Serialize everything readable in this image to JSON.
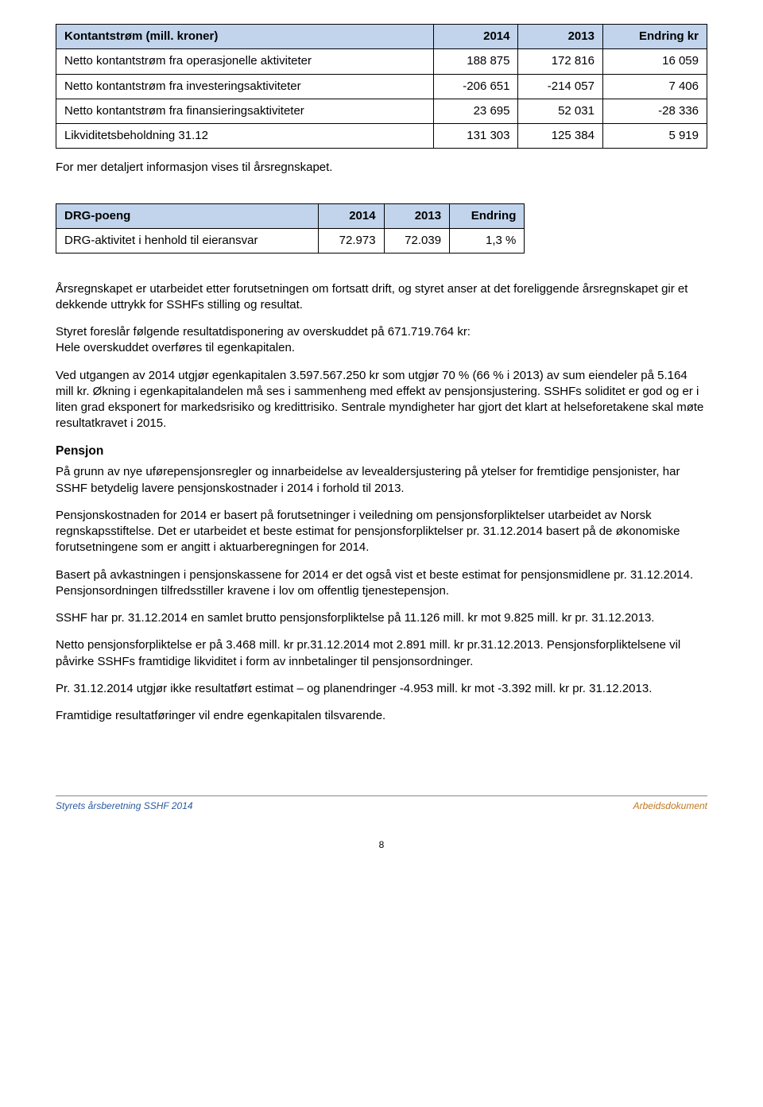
{
  "table1": {
    "header_bg": "#c1d4ec",
    "border_color": "#000000",
    "columns": [
      "Kontantstrøm (mill. kroner)",
      "2014",
      "2013",
      "Endring kr"
    ],
    "rows": [
      [
        "Netto kontantstrøm fra operasjonelle aktiviteter",
        "188 875",
        "172 816",
        "16 059"
      ],
      [
        "Netto kontantstrøm fra investeringsaktiviteter",
        "-206 651",
        "-214 057",
        "7 406"
      ],
      [
        "Netto kontantstrøm fra finansieringsaktiviteter",
        "23 695",
        "52 031",
        "-28 336"
      ],
      [
        "Likviditetsbeholdning 31.12",
        "131 303",
        "125 384",
        "5 919"
      ]
    ]
  },
  "p_after_t1": "For mer detaljert informasjon vises til årsregnskapet.",
  "table2": {
    "header_bg": "#c1d4ec",
    "border_color": "#000000",
    "columns": [
      "DRG-poeng",
      "2014",
      "2013",
      "Endring"
    ],
    "rows": [
      [
        "DRG-aktivitet i henhold til eieransvar",
        "72.973",
        "72.039",
        "1,3 %"
      ]
    ]
  },
  "paras": {
    "p1": "Årsregnskapet er utarbeidet etter forutsetningen om fortsatt drift, og styret anser at det foreliggende årsregnskapet gir et dekkende uttrykk for SSHFs stilling og resultat.",
    "p2a": "Styret foreslår følgende resultatdisponering av overskuddet på 671.719.764 kr:",
    "p2b": "Hele overskuddet overføres til egenkapitalen.",
    "p3": "Ved utgangen av 2014 utgjør egenkapitalen 3.597.567.250 kr som utgjør 70 % (66 % i 2013) av sum eiendeler på 5.164 mill kr. Økning i egenkapitalandelen må ses i sammenheng med effekt av pensjonsjustering. SSHFs soliditet er god og er i liten grad eksponert for markedsrisiko og kredittrisiko. Sentrale myndigheter har gjort det klart at helseforetakene skal møte resultatkravet i 2015."
  },
  "pensjon": {
    "title": "Pensjon",
    "p1": "På grunn av nye uførepensjonsregler og innarbeidelse av levealdersjustering på ytelser for fremtidige pensjonister, har SSHF betydelig lavere pensjonskostnader i 2014 i forhold til 2013.",
    "p2": "Pensjonskostnaden for 2014 er basert på forutsetninger i veiledning om pensjonsforpliktelser utarbeidet av Norsk regnskapsstiftelse. Det er utarbeidet et beste estimat for pensjonsforpliktelser pr. 31.12.2014 basert på de økonomiske forutsetningene som er angitt i aktuarberegningen for 2014.",
    "p3": "Basert på avkastningen i pensjonskassene for 2014 er det også vist et beste estimat for pensjonsmidlene pr. 31.12.2014. Pensjonsordningen tilfredsstiller kravene i lov om offentlig tjenestepensjon.",
    "p4": "SSHF har pr. 31.12.2014 en samlet brutto pensjonsforpliktelse på 11.126 mill. kr mot 9.825 mill. kr pr. 31.12.2013.",
    "p5": "Netto pensjonsforpliktelse er på 3.468 mill. kr pr.31.12.2014 mot 2.891 mill. kr pr.31.12.2013. Pensjonsforpliktelsene vil påvirke SSHFs framtidige likviditet i form av innbetalinger til pensjonsordninger.",
    "p6": "Pr. 31.12.2014 utgjør ikke resultatført estimat – og planendringer -4.953 mill. kr mot -3.392 mill. kr pr. 31.12.2013.",
    "p7": "Framtidige resultatføringer vil endre egenkapitalen tilsvarende."
  },
  "footer": {
    "left": "Styrets årsberetning SSHF 2014",
    "right": "Arbeidsdokument",
    "page": "8"
  }
}
